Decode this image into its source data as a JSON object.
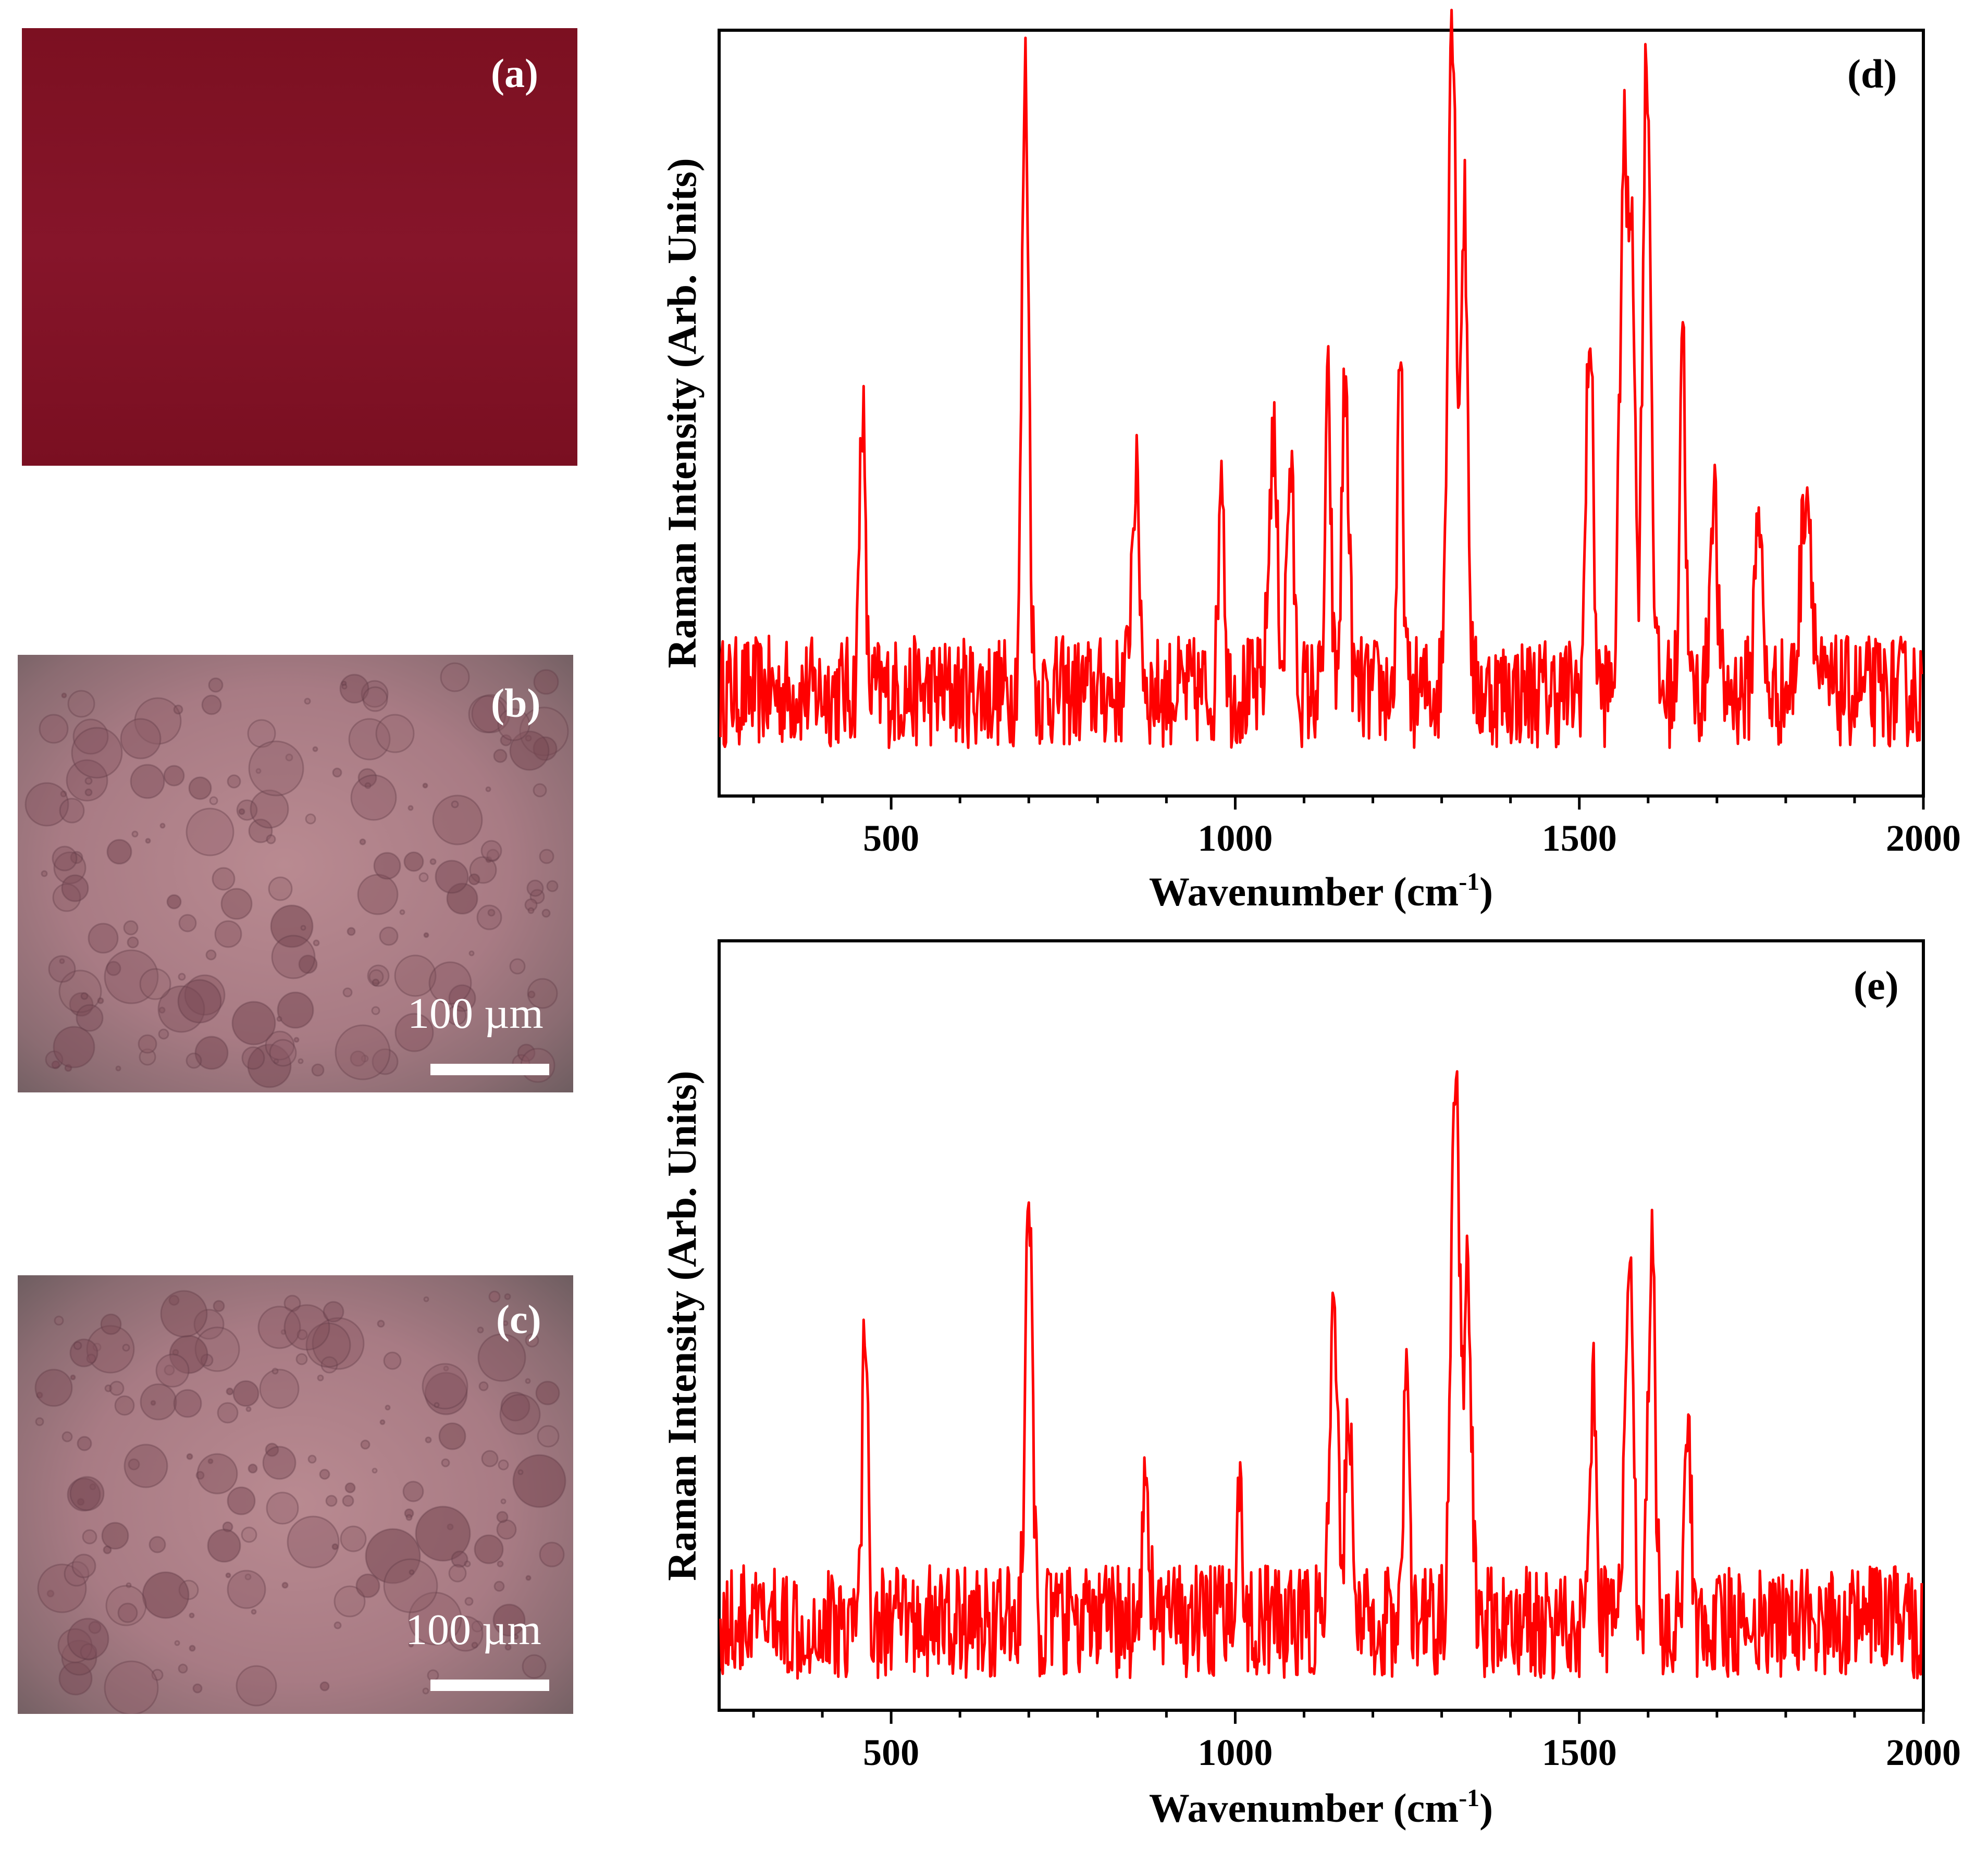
{
  "panels": {
    "a": {
      "label": "(a)"
    },
    "b": {
      "label": "(b)",
      "scale_text": "100 µm"
    },
    "c": {
      "label": "(c)",
      "scale_text": "100 µm"
    }
  },
  "colors": {
    "line": "#ff0000",
    "photo_a": "#7f1224",
    "photo_bc": "#a87b84"
  },
  "chart_data": [
    {
      "type": "line",
      "panel_label": "(d)",
      "xlabel": "Wavenumber (cm",
      "xlabel_sup": "-1",
      "xlabel_end": ")",
      "ylabel": "Raman Intensity (Arb. Units)",
      "xlim": [
        250,
        2000
      ],
      "ylim": [
        0,
        100
      ],
      "xticks": [
        500,
        1000,
        1500,
        2000
      ],
      "baseline": 12,
      "noise": 5,
      "peaks": [
        {
          "x": 458,
          "height": 42,
          "width": 4
        },
        {
          "x": 695,
          "height": 88,
          "width": 5
        },
        {
          "x": 855,
          "height": 30,
          "width": 6
        },
        {
          "x": 980,
          "height": 35,
          "width": 4
        },
        {
          "x": 1055,
          "height": 36,
          "width": 6
        },
        {
          "x": 1080,
          "height": 32,
          "width": 5
        },
        {
          "x": 1135,
          "height": 42,
          "width": 4
        },
        {
          "x": 1160,
          "height": 44,
          "width": 5
        },
        {
          "x": 1240,
          "height": 46,
          "width": 4
        },
        {
          "x": 1315,
          "height": 98,
          "width": 6
        },
        {
          "x": 1333,
          "height": 68,
          "width": 5
        },
        {
          "x": 1515,
          "height": 53,
          "width": 5
        },
        {
          "x": 1565,
          "height": 77,
          "width": 6
        },
        {
          "x": 1577,
          "height": 60,
          "width": 4
        },
        {
          "x": 1598,
          "height": 91,
          "width": 6
        },
        {
          "x": 1650,
          "height": 54,
          "width": 4
        },
        {
          "x": 1695,
          "height": 30,
          "width": 5
        },
        {
          "x": 1760,
          "height": 28,
          "width": 5
        },
        {
          "x": 1830,
          "height": 30,
          "width": 8
        }
      ]
    },
    {
      "type": "line",
      "panel_label": "(e)",
      "xlabel": "Wavenumber (cm",
      "xlabel_sup": "-1",
      "xlabel_end": ")",
      "ylabel": "Raman Intensity (Arb. Units)",
      "xlim": [
        250,
        2000
      ],
      "ylim": [
        0,
        100
      ],
      "xticks": [
        500,
        1000,
        1500,
        2000
      ],
      "baseline": 10,
      "noise": 5,
      "peaks": [
        {
          "x": 462,
          "height": 43,
          "width": 4
        },
        {
          "x": 700,
          "height": 60,
          "width": 5
        },
        {
          "x": 870,
          "height": 20,
          "width": 5
        },
        {
          "x": 1005,
          "height": 22,
          "width": 4
        },
        {
          "x": 1143,
          "height": 40,
          "width": 6
        },
        {
          "x": 1165,
          "height": 32,
          "width": 5
        },
        {
          "x": 1248,
          "height": 35,
          "width": 4
        },
        {
          "x": 1320,
          "height": 78,
          "width": 6
        },
        {
          "x": 1338,
          "height": 50,
          "width": 5
        },
        {
          "x": 1520,
          "height": 33,
          "width": 5
        },
        {
          "x": 1572,
          "height": 52,
          "width": 6
        },
        {
          "x": 1605,
          "height": 55,
          "width": 5
        },
        {
          "x": 1658,
          "height": 33,
          "width": 4
        }
      ]
    }
  ]
}
